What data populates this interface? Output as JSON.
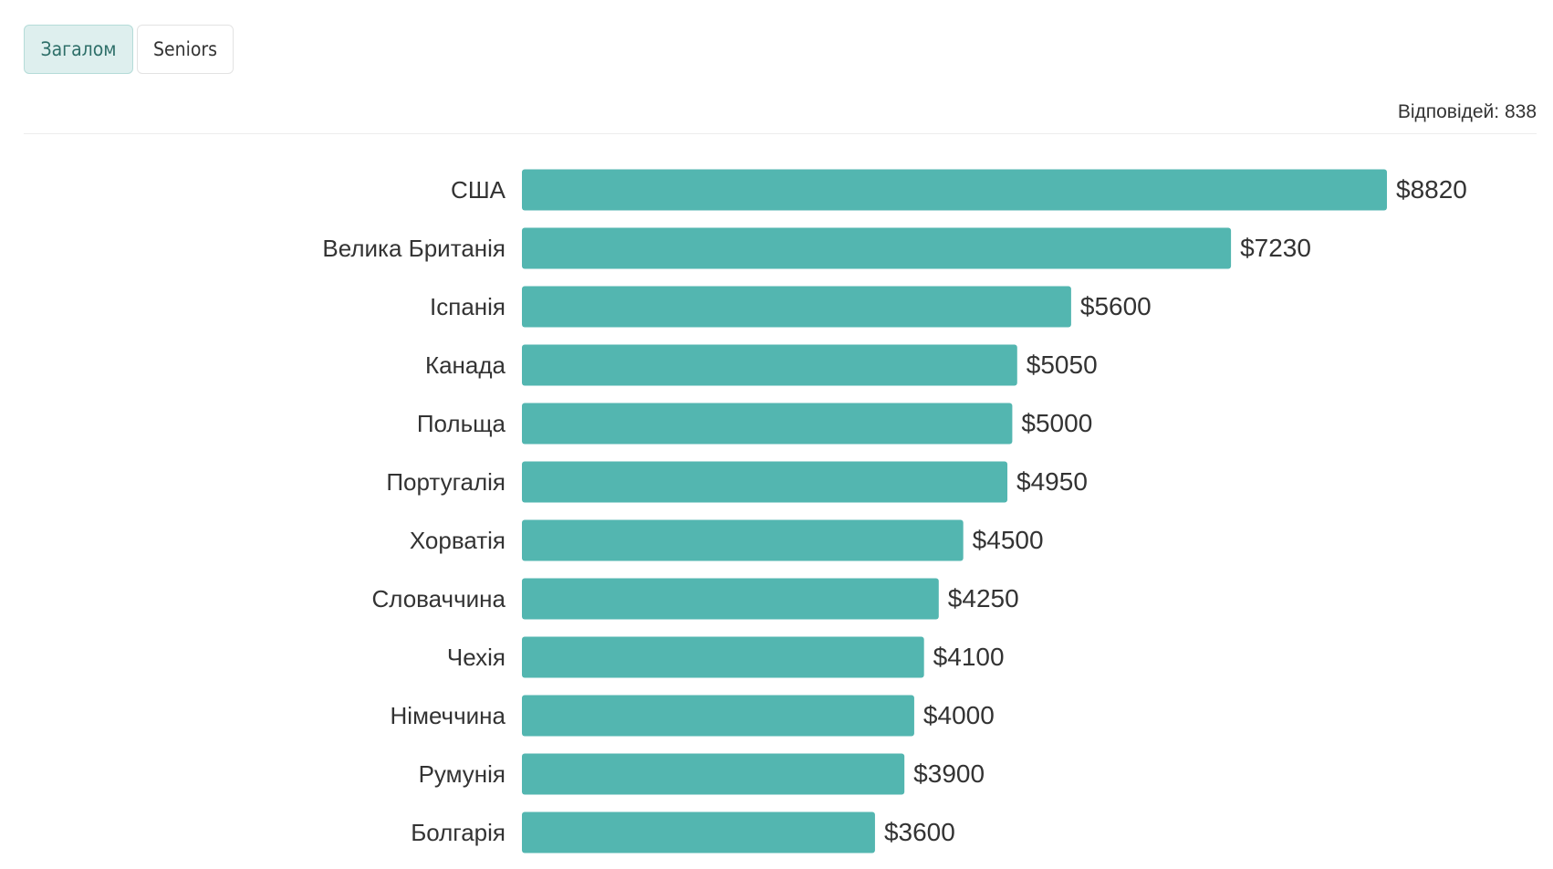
{
  "tabs": [
    {
      "label": "Загалом",
      "active": true
    },
    {
      "label": "Seniors",
      "active": false
    }
  ],
  "responses_label": "Відповідей: 838",
  "colors": {
    "bar": "#53b6b0",
    "tab_active_bg": "#deefee",
    "tab_active_text": "#2e6f69"
  },
  "chart_data": {
    "type": "bar",
    "orientation": "horizontal",
    "title": "",
    "xlabel": "",
    "ylabel": "",
    "categories": [
      "США",
      "Велика Британія",
      "Іспанія",
      "Канада",
      "Польща",
      "Португалія",
      "Хорватія",
      "Словаччина",
      "Чехія",
      "Німеччина",
      "Румунія",
      "Болгарія"
    ],
    "values": [
      8820,
      7230,
      5600,
      5050,
      5000,
      4950,
      4500,
      4250,
      4100,
      4000,
      3900,
      3600
    ],
    "value_labels": [
      "$8820",
      "$7230",
      "$5600",
      "$5050",
      "$5000",
      "$4950",
      "$4500",
      "$4250",
      "$4100",
      "$4000",
      "$3900",
      "$3600"
    ],
    "xlim": [
      0,
      8820
    ],
    "grid": false,
    "legend": "none"
  }
}
